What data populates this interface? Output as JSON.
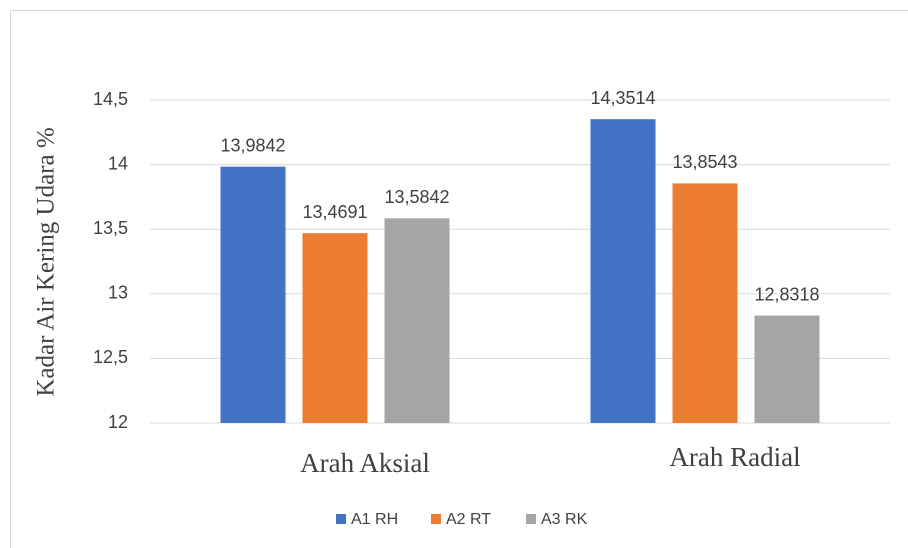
{
  "chart_data": {
    "type": "bar",
    "ylabel": "Kadar Air Kering Udara %",
    "categories": [
      "Arah Aksial",
      "Arah Radial"
    ],
    "series": [
      {
        "name": "A1 RH",
        "color": "#4472c4",
        "values": [
          13.9842,
          14.3514
        ],
        "value_labels": [
          "13,9842",
          "14,3514"
        ]
      },
      {
        "name": "A2 RT",
        "color": "#ed7d31",
        "values": [
          13.4691,
          13.8543
        ],
        "value_labels": [
          "13,4691",
          "13,8543"
        ]
      },
      {
        "name": "A3 RK",
        "color": "#a5a5a5",
        "values": [
          13.5842,
          12.8318
        ],
        "value_labels": [
          "13,5842",
          "12,8318"
        ]
      }
    ],
    "ylim": [
      12,
      14.5
    ],
    "yticks": [
      12,
      {
        "value": 12.5,
        "label": "12,5"
      },
      13,
      {
        "value": 13.5,
        "label": "13,5"
      },
      14,
      {
        "value": 14.5,
        "label": "14,5"
      }
    ],
    "grid": true,
    "legend": "bottom"
  }
}
